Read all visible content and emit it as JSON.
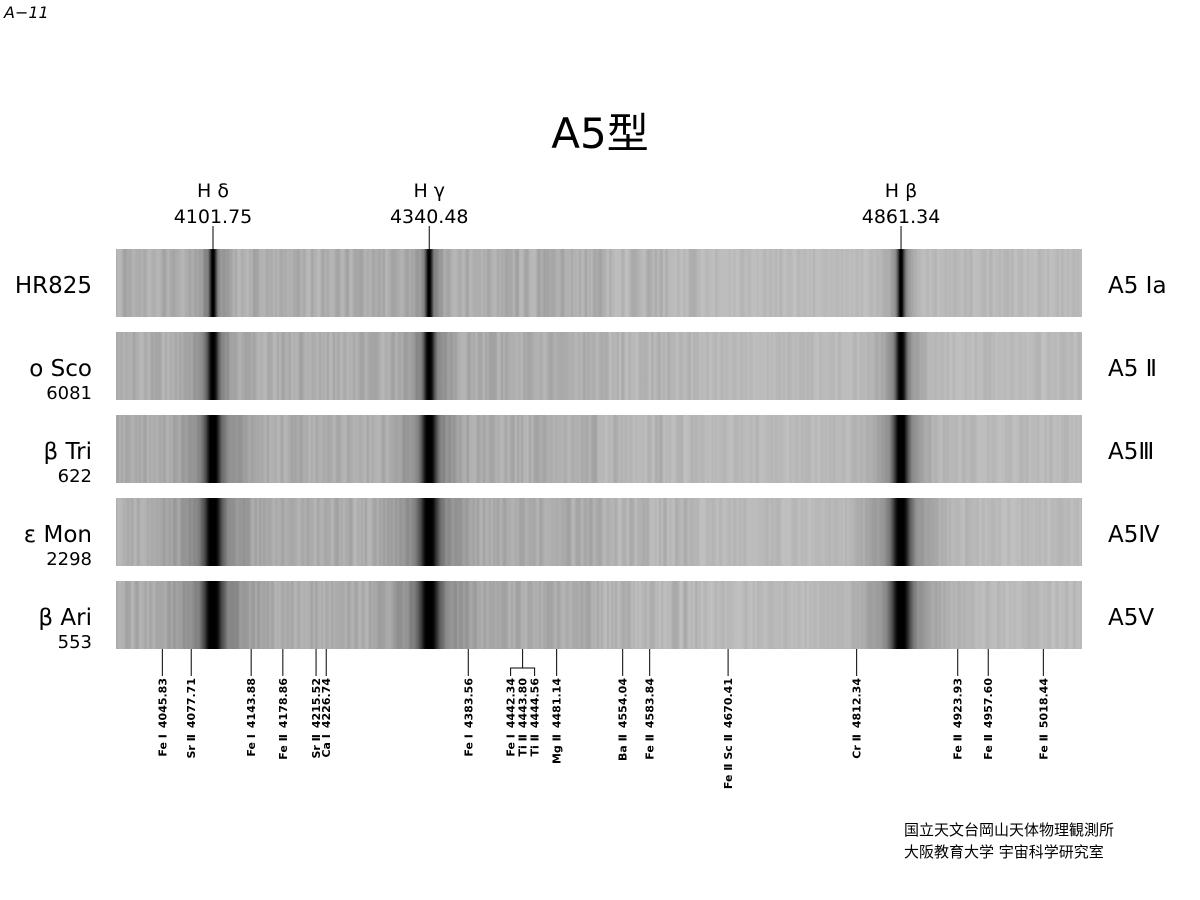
{
  "page_label": "A−11",
  "title": "A5型",
  "balmer_lines": [
    {
      "name": "H δ",
      "wavelength": "4101.75"
    },
    {
      "name": "H γ",
      "wavelength": "4340.48"
    },
    {
      "name": "H β",
      "wavelength": "4861.34"
    }
  ],
  "stars": [
    {
      "name": "HR825",
      "class": "A5 Ⅰa"
    },
    {
      "name": "ο Sco",
      "hd": "6081",
      "class": "A5 Ⅱ"
    },
    {
      "name": "β Tri",
      "hd": "622",
      "class": "A5Ⅲ"
    },
    {
      "name": "ε Mon",
      "hd": "2298",
      "class": "A5Ⅳ"
    },
    {
      "name": "β Ari",
      "hd": "553",
      "class": "A5Ⅴ"
    }
  ],
  "features": [
    {
      "lines": [
        {
          "species": "Fe Ⅰ",
          "wavelength": "4045.83"
        }
      ]
    },
    {
      "lines": [
        {
          "species": "Sr Ⅱ",
          "wavelength": "4077.71"
        }
      ]
    },
    {
      "lines": [
        {
          "species": "Fe Ⅰ",
          "wavelength": "4143.88"
        }
      ]
    },
    {
      "lines": [
        {
          "species": "Fe Ⅱ",
          "wavelength": "4178.86"
        }
      ]
    },
    {
      "lines": [
        {
          "species": "Sr Ⅱ",
          "wavelength": "4215.52"
        }
      ]
    },
    {
      "lines": [
        {
          "species": "Ca Ⅰ",
          "wavelength": "4226.74"
        }
      ]
    },
    {
      "lines": [
        {
          "species": "Fe Ⅰ",
          "wavelength": "4383.56"
        }
      ]
    },
    {
      "lines": [
        {
          "species": "Fe Ⅰ",
          "wavelength": "4442.34"
        },
        {
          "species": "Ti Ⅱ",
          "wavelength": "4443.80"
        },
        {
          "species": "Ti Ⅱ",
          "wavelength": "4444.56"
        }
      ]
    },
    {
      "lines": [
        {
          "species": "Mg Ⅱ",
          "wavelength": "4481.14"
        }
      ]
    },
    {
      "lines": [
        {
          "species": "Ba Ⅱ",
          "wavelength": "4554.04"
        }
      ]
    },
    {
      "lines": [
        {
          "species": "Fe Ⅱ",
          "wavelength": "4583.84"
        }
      ]
    },
    {
      "lines": [
        {
          "species": "Fe Ⅱ Sc Ⅱ",
          "wavelength": "4670.41"
        }
      ]
    },
    {
      "lines": [
        {
          "species": "Cr Ⅱ",
          "wavelength": "4812.34"
        }
      ]
    },
    {
      "lines": [
        {
          "species": "Fe Ⅱ",
          "wavelength": "4923.93"
        }
      ]
    },
    {
      "lines": [
        {
          "species": "Fe Ⅱ",
          "wavelength": "4957.60"
        }
      ]
    },
    {
      "lines": [
        {
          "species": "Fe Ⅱ",
          "wavelength": "5018.44"
        }
      ]
    }
  ],
  "credits": [
    "国立天文台岡山天体物理観測所",
    "大阪教育大学 宇宙科学研究室"
  ]
}
